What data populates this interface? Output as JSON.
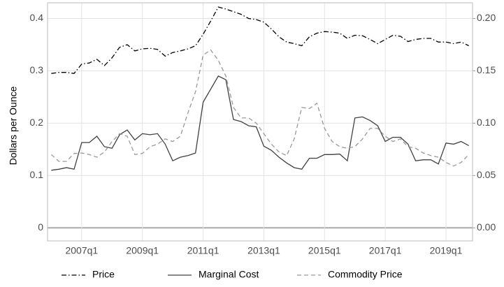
{
  "chart_data": {
    "type": "line",
    "ylabel": "Dollars per Ounce",
    "categories": [
      null,
      null,
      null,
      null,
      "2007q1",
      null,
      null,
      null,
      null,
      null,
      null,
      null,
      "2009q1",
      null,
      null,
      null,
      null,
      null,
      null,
      null,
      "2011q1",
      null,
      null,
      null,
      null,
      null,
      null,
      null,
      "2013q1",
      null,
      null,
      null,
      null,
      null,
      null,
      null,
      "2015q1",
      null,
      null,
      null,
      null,
      null,
      null,
      null,
      "2017q1",
      null,
      null,
      null,
      null,
      null,
      null,
      null,
      "2019q1",
      null,
      null,
      null
    ],
    "series": [
      {
        "name": "Price",
        "color": "#000000",
        "dash": "dashdot",
        "values": [
          0.295,
          0.297,
          0.297,
          0.295,
          0.313,
          0.315,
          0.322,
          0.31,
          0.325,
          0.345,
          0.35,
          0.338,
          0.342,
          0.343,
          0.341,
          0.328,
          0.335,
          0.338,
          0.342,
          0.348,
          0.37,
          0.395,
          0.422,
          0.418,
          0.413,
          0.408,
          0.4,
          0.398,
          0.393,
          0.38,
          0.365,
          0.355,
          0.352,
          0.348,
          0.365,
          0.372,
          0.375,
          0.374,
          0.372,
          0.362,
          0.368,
          0.367,
          0.36,
          0.352,
          0.36,
          0.368,
          0.366,
          0.356,
          0.36,
          0.362,
          0.362,
          0.355,
          0.355,
          0.352,
          0.355,
          0.348
        ]
      },
      {
        "name": "Marginal Cost",
        "color": "#404040",
        "dash": "solid",
        "values": [
          0.11,
          0.112,
          0.115,
          0.112,
          0.163,
          0.163,
          0.175,
          0.155,
          0.152,
          0.178,
          0.187,
          0.168,
          0.18,
          0.178,
          0.18,
          0.16,
          0.128,
          0.135,
          0.138,
          0.143,
          0.24,
          0.265,
          0.29,
          0.283,
          0.207,
          0.203,
          0.195,
          0.193,
          0.156,
          0.148,
          0.135,
          0.124,
          0.115,
          0.112,
          0.133,
          0.133,
          0.14,
          0.14,
          0.141,
          0.128,
          0.21,
          0.212,
          0.205,
          0.195,
          0.165,
          0.173,
          0.173,
          0.16,
          0.128,
          0.13,
          0.13,
          0.122,
          0.162,
          0.16,
          0.165,
          0.157
        ]
      },
      {
        "name": "Commodity Price",
        "color": "#999999",
        "dash": "dashed",
        "values": [
          0.14,
          0.127,
          0.127,
          0.142,
          0.143,
          0.14,
          0.135,
          0.145,
          0.165,
          0.18,
          0.175,
          0.14,
          0.142,
          0.155,
          0.16,
          0.17,
          0.165,
          0.175,
          0.22,
          0.26,
          0.33,
          0.34,
          0.32,
          0.29,
          0.23,
          0.21,
          0.21,
          0.2,
          0.18,
          0.16,
          0.145,
          0.138,
          0.17,
          0.23,
          0.228,
          0.238,
          0.19,
          0.165,
          0.155,
          0.152,
          0.155,
          0.17,
          0.19,
          0.19,
          0.175,
          0.165,
          0.17,
          0.155,
          0.152,
          0.143,
          0.138,
          0.135,
          0.125,
          0.118,
          0.125,
          0.14
        ]
      }
    ],
    "ylim": [
      -0.025,
      0.43
    ],
    "yticks": [
      0,
      0.1,
      0.2,
      0.3,
      0.4
    ],
    "y2lim": [
      -0.0125,
      0.215
    ],
    "y2ticks": [
      {
        "value": 0,
        "label": "0.00"
      },
      {
        "value": 0.05,
        "label": "0.05"
      },
      {
        "value": 0.1,
        "label": "0.10"
      },
      {
        "value": 0.15,
        "label": "0.15"
      },
      {
        "value": 0.2,
        "label": "0.20"
      }
    ],
    "grid": true
  }
}
